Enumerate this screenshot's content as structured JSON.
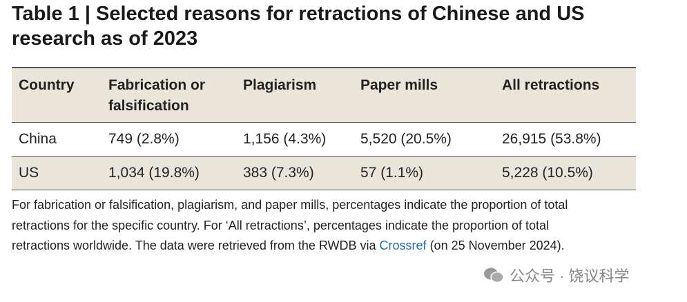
{
  "header": {
    "title": "Table 1 | Selected reasons for retractions of Chinese and US research as of 2023"
  },
  "table": {
    "columns": [
      "Country",
      "Fabrication or falsification",
      "Plagiarism",
      "Paper mills",
      "All retractions"
    ],
    "rows": [
      [
        "China",
        "749 (2.8%)",
        "1,156 (4.3%)",
        "5,520 (20.5%)",
        "26,915 (53.8%)"
      ],
      [
        "US",
        "1,034 (19.8%)",
        "383 (7.3%)",
        "57 (1.1%)",
        "5,228 (10.5%)"
      ]
    ]
  },
  "footnote": {
    "text_before": "For fabrication or falsification, plagiarism, and paper mills, percentages indicate the proportion of total retractions for the specific country. For ‘All retractions’, percentages indicate the proportion of total retractions worldwide. The data were retrieved from the RWDB via ",
    "link": "Crossref",
    "text_after": " (on 25 November 2024)."
  },
  "watermark": {
    "text": "公众号 · 饶议科学"
  }
}
